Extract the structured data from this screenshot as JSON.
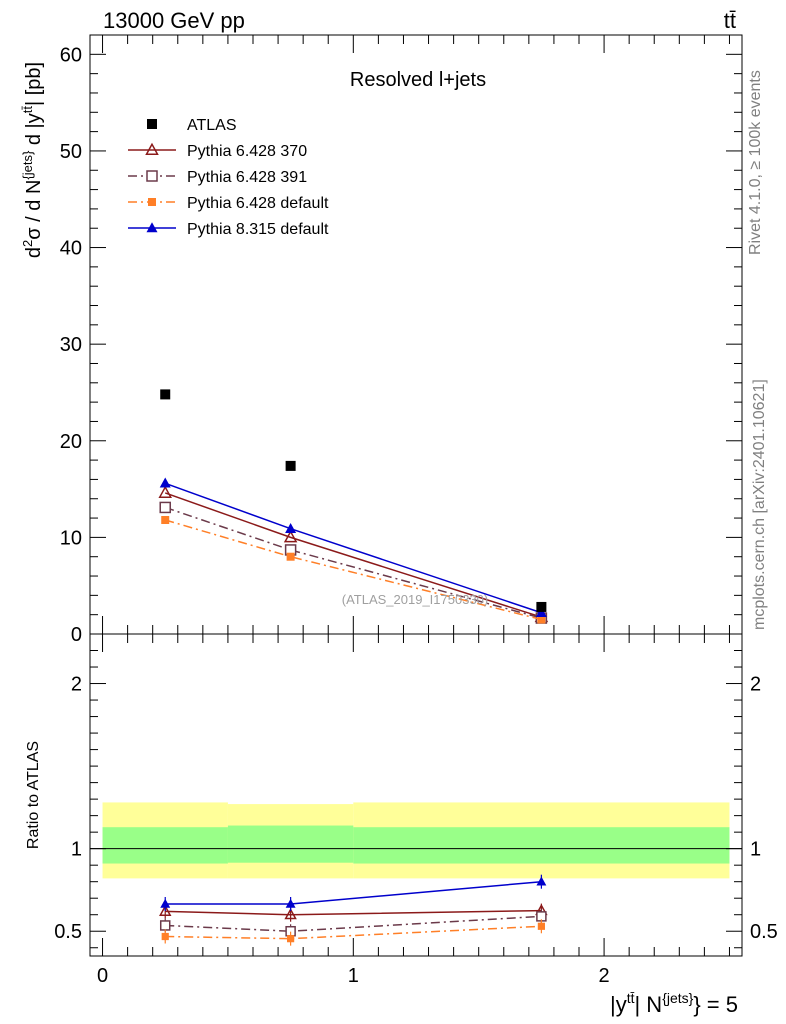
{
  "header": {
    "left": "13000 GeV pp",
    "right": "tt̄"
  },
  "side_texts": {
    "rivet": "Rivet 4.1.0, ≥ 100k events",
    "mcplots": "mcplots.cern.ch [arXiv:2401.10621]"
  },
  "chart_data": [
    {
      "id": "main",
      "type": "scatter",
      "title": "Resolved l+jets",
      "ylabel": "d²σ / d N^{jets} d |y^{tt̄}| [pb]",
      "xlabel": "",
      "xlim": [
        -0.05,
        2.55
      ],
      "ylim": [
        0,
        62
      ],
      "y_ticks": [
        0,
        10,
        20,
        30,
        40,
        50,
        60
      ],
      "watermark": "(ATLAS_2019_I1750330)",
      "legend_position": "top-left",
      "x": [
        0.25,
        0.75,
        1.75
      ],
      "series": [
        {
          "name": "ATLAS",
          "color": "#000000",
          "marker": "filled-square",
          "line": "none",
          "values": [
            24.8,
            17.4,
            2.8
          ]
        },
        {
          "name": "Pythia 6.428 370",
          "color": "#8b1a1a",
          "marker": "open-triangle",
          "line": "solid",
          "values": [
            14.6,
            10.0,
            1.75
          ]
        },
        {
          "name": "Pythia 6.428 391",
          "color": "#6b3a4a",
          "marker": "open-square",
          "line": "dashdot",
          "values": [
            13.1,
            8.7,
            1.65
          ]
        },
        {
          "name": "Pythia 6.428 default",
          "color": "#ff7f27",
          "marker": "filled-square-small",
          "line": "dashdot",
          "values": [
            11.8,
            8.0,
            1.5
          ]
        },
        {
          "name": "Pythia 8.315 default",
          "color": "#0000cc",
          "marker": "filled-triangle",
          "line": "solid",
          "values": [
            15.6,
            10.9,
            2.2
          ]
        }
      ]
    },
    {
      "id": "ratio",
      "type": "line",
      "ylabel": "Ratio to ATLAS",
      "xlabel": "|y^{tt̄}| N^{jets} = 5",
      "xlim": [
        -0.05,
        2.55
      ],
      "ylim": [
        0.35,
        2.3
      ],
      "y_ticks": [
        0.5,
        1,
        2
      ],
      "y_tick_labels": [
        "0.5",
        "1",
        "2"
      ],
      "x_ticks": [
        0,
        1,
        2
      ],
      "x_tick_labels": [
        "0",
        "1",
        "2"
      ],
      "x": [
        0.25,
        0.75,
        1.75
      ],
      "band_yellow": {
        "bins": [
          [
            0,
            0.5
          ],
          [
            0.5,
            1.0
          ],
          [
            1.0,
            2.5
          ]
        ],
        "low": [
          0.82,
          0.82,
          0.82
        ],
        "high": [
          1.28,
          1.27,
          1.28
        ]
      },
      "band_green": {
        "bins": [
          [
            0,
            0.5
          ],
          [
            0.5,
            1.0
          ],
          [
            1.0,
            2.5
          ]
        ],
        "low": [
          0.91,
          0.915,
          0.91
        ],
        "high": [
          1.13,
          1.14,
          1.13
        ]
      },
      "series": [
        {
          "name": "Pythia 6.428 370",
          "color": "#8b1a1a",
          "marker": "open-triangle",
          "line": "solid",
          "values": [
            0.62,
            0.6,
            0.625
          ]
        },
        {
          "name": "Pythia 6.428 391",
          "color": "#6b3a4a",
          "marker": "open-square",
          "line": "dashdot",
          "values": [
            0.535,
            0.5,
            0.59
          ]
        },
        {
          "name": "Pythia 6.428 default",
          "color": "#ff7f27",
          "marker": "filled-square-small",
          "line": "dashdot",
          "values": [
            0.468,
            0.455,
            0.53
          ]
        },
        {
          "name": "Pythia 8.315 default",
          "color": "#0000cc",
          "marker": "filled-triangle",
          "line": "solid",
          "values": [
            0.665,
            0.665,
            0.8
          ]
        }
      ]
    }
  ]
}
